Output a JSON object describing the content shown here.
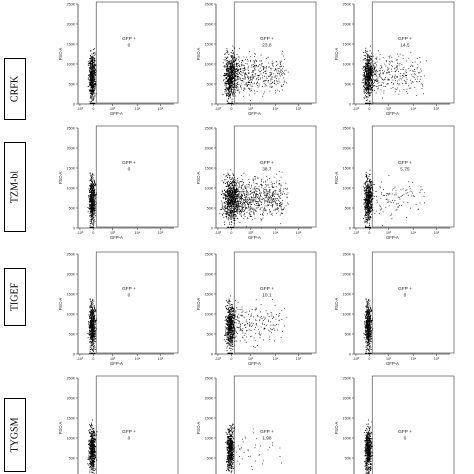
{
  "figure": {
    "rows": [
      "CRFK",
      "TZM-bl",
      "TIGEF",
      "TYGSM"
    ],
    "axis_labels": {
      "x": "GFP-A",
      "y": "FSC-A"
    },
    "y_ticks": [
      "250K",
      "200K",
      "150K",
      "100K",
      "50K",
      "0"
    ],
    "x_ticks": [
      "-10^3",
      "0",
      "10^3",
      "10^4",
      "10^5"
    ],
    "gate_label": "GFP +"
  },
  "chart_data": [
    {
      "type": "scatter",
      "row": "CRFK",
      "column": 1,
      "xlabel": "GFP-A",
      "ylabel": "FSC-A",
      "ylim": [
        0,
        262144
      ],
      "x_scale": "biexponential",
      "gate": {
        "label": "GFP +",
        "value": "0"
      }
    },
    {
      "type": "scatter",
      "row": "CRFK",
      "column": 2,
      "xlabel": "GFP-A",
      "ylabel": "FSC-A",
      "ylim": [
        0,
        262144
      ],
      "x_scale": "biexponential",
      "gate": {
        "label": "GFP +",
        "value": "23.8"
      }
    },
    {
      "type": "scatter",
      "row": "CRFK",
      "column": 3,
      "xlabel": "GFP-A",
      "ylabel": "FSC-A",
      "ylim": [
        0,
        262144
      ],
      "x_scale": "biexponential",
      "gate": {
        "label": "GFP +",
        "value": "14.5"
      }
    },
    {
      "type": "scatter",
      "row": "TZM-bl",
      "column": 1,
      "xlabel": "GFP-A",
      "ylabel": "FSC-A",
      "ylim": [
        0,
        262144
      ],
      "x_scale": "biexponential",
      "gate": {
        "label": "GFP +",
        "value": "0"
      }
    },
    {
      "type": "scatter",
      "row": "TZM-bl",
      "column": 2,
      "xlabel": "GFP-A",
      "ylabel": "FSC-A",
      "ylim": [
        0,
        262144
      ],
      "x_scale": "biexponential",
      "gate": {
        "label": "GFP +",
        "value": "38.7"
      }
    },
    {
      "type": "scatter",
      "row": "TZM-bl",
      "column": 3,
      "xlabel": "GFP-A",
      "ylabel": "FSC-A",
      "ylim": [
        0,
        262144
      ],
      "x_scale": "biexponential",
      "gate": {
        "label": "GFP +",
        "value": "5.75"
      }
    },
    {
      "type": "scatter",
      "row": "TIGEF",
      "column": 1,
      "xlabel": "GFP-A",
      "ylabel": "FSC-A",
      "ylim": [
        0,
        262144
      ],
      "x_scale": "biexponential",
      "gate": {
        "label": "GFP +",
        "value": "0"
      }
    },
    {
      "type": "scatter",
      "row": "TIGEF",
      "column": 2,
      "xlabel": "GFP-A",
      "ylabel": "FSC-A",
      "ylim": [
        0,
        262144
      ],
      "x_scale": "biexponential",
      "gate": {
        "label": "GFP +",
        "value": "10.1"
      }
    },
    {
      "type": "scatter",
      "row": "TIGEF",
      "column": 3,
      "xlabel": "GFP-A",
      "ylabel": "FSC-A",
      "ylim": [
        0,
        262144
      ],
      "x_scale": "biexponential",
      "gate": {
        "label": "GFP +",
        "value": "0"
      }
    },
    {
      "type": "scatter",
      "row": "TYGSM",
      "column": 1,
      "xlabel": "GFP-A",
      "ylabel": "FSC-A",
      "ylim": [
        0,
        262144
      ],
      "x_scale": "biexponential",
      "gate": {
        "label": "GFP +",
        "value": "0"
      }
    },
    {
      "type": "scatter",
      "row": "TYGSM",
      "column": 2,
      "xlabel": "GFP-A",
      "ylabel": "FSC-A",
      "ylim": [
        0,
        262144
      ],
      "x_scale": "biexponential",
      "gate": {
        "label": "GFP +",
        "value": "1.98"
      }
    },
    {
      "type": "scatter",
      "row": "TYGSM",
      "column": 3,
      "xlabel": "GFP-A",
      "ylabel": "FSC-A",
      "ylim": [
        0,
        262144
      ],
      "x_scale": "biexponential",
      "gate": {
        "label": "GFP +",
        "value": "0"
      }
    }
  ]
}
